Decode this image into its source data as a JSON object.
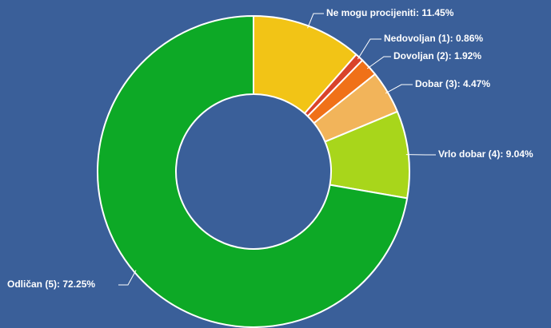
{
  "chart_data": {
    "type": "pie",
    "donut": true,
    "title": "",
    "slices": [
      {
        "label": "Ne mogu procijeniti: 11.45%",
        "value": 11.45,
        "color": "#f2c416"
      },
      {
        "label": "Nedovoljan (1): 0.86%",
        "value": 0.86,
        "color": "#d9432b"
      },
      {
        "label": "Dovoljan (2): 1.92%",
        "value": 1.92,
        "color": "#f07118"
      },
      {
        "label": "Dobar (3): 4.47%",
        "value": 4.47,
        "color": "#f2b45a"
      },
      {
        "label": "Vrlo dobar (4): 9.04%",
        "value": 9.04,
        "color": "#a8d61b"
      },
      {
        "label": "Odličan (5): 72.25%",
        "value": 72.25,
        "color": "#0da926"
      }
    ]
  }
}
